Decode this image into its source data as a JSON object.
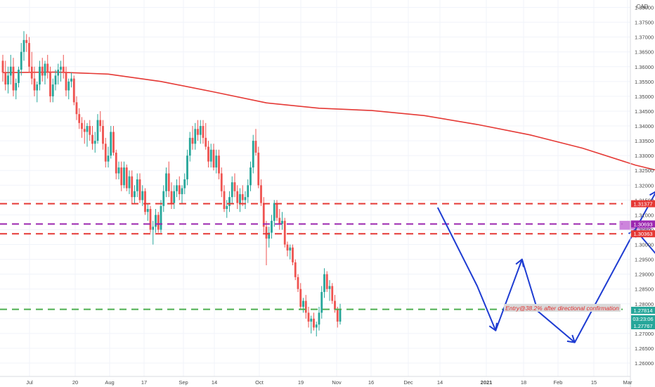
{
  "currency": "CAD",
  "annotation_text": "Entry@38.2% after directional confirmation",
  "countdown": "03:23:06",
  "colors": {
    "up": "#26a69a",
    "down": "#ef5350",
    "ma": "#e53935",
    "red_level": "#e53935",
    "purple_level": "#9c27b0",
    "green_level": "#4caf50",
    "projection": "#1e3cd2",
    "zone_fill": "#c46fd6",
    "annotation_bg": "#d9d9d9",
    "annotation_text": "#e03030"
  },
  "chart_data": {
    "type": "candlestick",
    "title": "",
    "xlabel": "",
    "ylabel": "",
    "ylim": [
      1.2555,
      1.3825
    ],
    "grid": true,
    "y_ticks": [
      "1.38000",
      "1.37500",
      "1.37000",
      "1.36500",
      "1.36000",
      "1.35500",
      "1.35000",
      "1.34500",
      "1.34000",
      "1.33500",
      "1.33000",
      "1.32500",
      "1.32000",
      "1.31500",
      "1.31000",
      "1.30500",
      "1.30000",
      "1.29500",
      "1.29000",
      "1.28500",
      "1.28000",
      "1.27500",
      "1.27000",
      "1.26500",
      "1.26000"
    ],
    "x_ticks": [
      "Jul",
      "20",
      "Aug",
      "17",
      "Sep",
      "14",
      "Oct",
      "19",
      "Nov",
      "16",
      "Dec",
      "14",
      "2021",
      "18",
      "Feb",
      "15",
      "Mar"
    ],
    "price_labels": [
      {
        "value": "1.31377",
        "color": "#e53935"
      },
      {
        "value": "1.30693",
        "color": "#9c27b0"
      },
      {
        "value": "1.30363",
        "color": "#e53935"
      },
      {
        "value": "1.27814",
        "color": "#26a69a"
      },
      {
        "value": "1.27767",
        "color": "#26a69a"
      }
    ],
    "levels": [
      {
        "value": 1.31377,
        "color": "#e53935",
        "style": "dashed"
      },
      {
        "value": 1.30693,
        "color": "#9c27b0",
        "style": "dashed"
      },
      {
        "value": 1.30363,
        "color": "#e53935",
        "style": "dashed"
      },
      {
        "value": 1.27814,
        "color": "#4caf50",
        "style": "dashed"
      }
    ],
    "moving_average": [
      [
        0,
        1.358
      ],
      [
        20,
        1.3582
      ],
      [
        40,
        1.3575
      ],
      [
        60,
        1.355
      ],
      [
        80,
        1.3515
      ],
      [
        100,
        1.3478
      ],
      [
        120,
        1.346
      ],
      [
        140,
        1.3452
      ],
      [
        160,
        1.3435
      ],
      [
        180,
        1.3405
      ],
      [
        200,
        1.337
      ],
      [
        220,
        1.3325
      ],
      [
        240,
        1.3268
      ],
      [
        260,
        1.3225
      ]
    ],
    "projection": [
      [
        165,
        1.3125
      ],
      [
        180,
        1.286
      ],
      [
        187,
        1.271
      ],
      [
        197,
        1.295
      ],
      [
        203,
        1.2775
      ],
      [
        217,
        1.267
      ],
      [
        240,
        1.305
      ],
      [
        248,
        1.318
      ]
    ],
    "arrow_secondary": [
      [
        240,
        1.305
      ],
      [
        251,
        1.2935
      ]
    ],
    "zone": {
      "x0": 234,
      "x1": 246,
      "top": 1.308,
      "bottom": 1.305
    },
    "candles": [
      [
        1.362,
        1.364,
        1.355,
        1.358
      ],
      [
        1.358,
        1.362,
        1.352,
        1.354
      ],
      [
        1.354,
        1.36,
        1.351,
        1.357
      ],
      [
        1.357,
        1.364,
        1.354,
        1.36
      ],
      [
        1.36,
        1.363,
        1.35,
        1.352
      ],
      [
        1.352,
        1.356,
        1.349,
        1.3545
      ],
      [
        1.3545,
        1.36,
        1.353,
        1.359
      ],
      [
        1.359,
        1.368,
        1.357,
        1.365
      ],
      [
        1.365,
        1.372,
        1.362,
        1.369
      ],
      [
        1.369,
        1.371,
        1.365,
        1.368
      ],
      [
        1.368,
        1.37,
        1.358,
        1.36
      ],
      [
        1.36,
        1.365,
        1.354,
        1.356
      ],
      [
        1.356,
        1.36,
        1.35,
        1.352
      ],
      [
        1.352,
        1.355,
        1.348,
        1.354
      ],
      [
        1.354,
        1.362,
        1.352,
        1.36
      ],
      [
        1.36,
        1.363,
        1.355,
        1.357
      ],
      [
        1.357,
        1.362,
        1.354,
        1.361
      ],
      [
        1.361,
        1.364,
        1.356,
        1.358
      ],
      [
        1.358,
        1.36,
        1.348,
        1.35
      ],
      [
        1.35,
        1.356,
        1.348,
        1.354
      ],
      [
        1.354,
        1.359,
        1.352,
        1.357
      ],
      [
        1.357,
        1.361,
        1.354,
        1.359
      ],
      [
        1.359,
        1.362,
        1.355,
        1.36
      ],
      [
        1.36,
        1.364,
        1.356,
        1.358
      ],
      [
        1.358,
        1.36,
        1.35,
        1.352
      ],
      [
        1.352,
        1.356,
        1.349,
        1.355
      ],
      [
        1.355,
        1.358,
        1.353,
        1.356
      ],
      [
        1.356,
        1.357,
        1.347,
        1.348
      ],
      [
        1.348,
        1.35,
        1.342,
        1.344
      ],
      [
        1.344,
        1.346,
        1.339,
        1.341
      ],
      [
        1.341,
        1.343,
        1.336,
        1.339
      ],
      [
        1.339,
        1.342,
        1.334,
        1.338
      ],
      [
        1.338,
        1.341,
        1.333,
        1.34
      ],
      [
        1.34,
        1.342,
        1.335,
        1.337
      ],
      [
        1.337,
        1.34,
        1.332,
        1.334
      ],
      [
        1.334,
        1.338,
        1.331,
        1.335
      ],
      [
        1.335,
        1.344,
        1.334,
        1.342
      ],
      [
        1.342,
        1.345,
        1.338,
        1.34
      ],
      [
        1.34,
        1.342,
        1.332,
        1.334
      ],
      [
        1.334,
        1.336,
        1.326,
        1.328
      ],
      [
        1.328,
        1.333,
        1.326,
        1.33
      ],
      [
        1.33,
        1.34,
        1.329,
        1.338
      ],
      [
        1.338,
        1.34,
        1.33,
        1.331
      ],
      [
        1.331,
        1.332,
        1.322,
        1.324
      ],
      [
        1.324,
        1.328,
        1.322,
        1.326
      ],
      [
        1.326,
        1.328,
        1.318,
        1.32
      ],
      [
        1.32,
        1.328,
        1.319,
        1.326
      ],
      [
        1.326,
        1.327,
        1.318,
        1.319
      ],
      [
        1.319,
        1.325,
        1.317,
        1.323
      ],
      [
        1.323,
        1.325,
        1.314,
        1.316
      ],
      [
        1.316,
        1.32,
        1.314,
        1.318
      ],
      [
        1.318,
        1.324,
        1.316,
        1.322
      ],
      [
        1.322,
        1.324,
        1.314,
        1.315
      ],
      [
        1.315,
        1.32,
        1.313,
        1.318
      ],
      [
        1.318,
        1.319,
        1.31,
        1.311
      ],
      [
        1.311,
        1.314,
        1.308,
        1.312
      ],
      [
        1.312,
        1.313,
        1.304,
        1.305
      ],
      [
        1.305,
        1.308,
        1.3,
        1.306
      ],
      [
        1.306,
        1.312,
        1.304,
        1.31
      ],
      [
        1.31,
        1.311,
        1.304,
        1.305
      ],
      [
        1.305,
        1.315,
        1.304,
        1.313
      ],
      [
        1.313,
        1.32,
        1.311,
        1.318
      ],
      [
        1.318,
        1.326,
        1.316,
        1.324
      ],
      [
        1.324,
        1.328,
        1.316,
        1.318
      ],
      [
        1.318,
        1.321,
        1.312,
        1.314
      ],
      [
        1.314,
        1.32,
        1.312,
        1.318
      ],
      [
        1.318,
        1.322,
        1.316,
        1.32
      ],
      [
        1.32,
        1.323,
        1.315,
        1.317
      ],
      [
        1.317,
        1.32,
        1.314,
        1.319
      ],
      [
        1.319,
        1.324,
        1.317,
        1.322
      ],
      [
        1.322,
        1.332,
        1.32,
        1.33
      ],
      [
        1.33,
        1.338,
        1.328,
        1.336
      ],
      [
        1.336,
        1.34,
        1.332,
        1.334
      ],
      [
        1.334,
        1.341,
        1.332,
        1.339
      ],
      [
        1.339,
        1.342,
        1.335,
        1.337
      ],
      [
        1.337,
        1.342,
        1.334,
        1.34
      ],
      [
        1.34,
        1.342,
        1.334,
        1.336
      ],
      [
        1.336,
        1.341,
        1.332,
        1.333
      ],
      [
        1.333,
        1.335,
        1.326,
        1.328
      ],
      [
        1.328,
        1.334,
        1.326,
        1.332
      ],
      [
        1.332,
        1.334,
        1.325,
        1.326
      ],
      [
        1.326,
        1.332,
        1.324,
        1.33
      ],
      [
        1.33,
        1.332,
        1.322,
        1.324
      ],
      [
        1.324,
        1.326,
        1.316,
        1.318
      ],
      [
        1.318,
        1.32,
        1.311,
        1.312
      ],
      [
        1.312,
        1.315,
        1.309,
        1.313
      ],
      [
        1.313,
        1.318,
        1.311,
        1.316
      ],
      [
        1.316,
        1.323,
        1.314,
        1.321
      ],
      [
        1.321,
        1.324,
        1.316,
        1.318
      ],
      [
        1.318,
        1.32,
        1.312,
        1.314
      ],
      [
        1.314,
        1.319,
        1.311,
        1.317
      ],
      [
        1.317,
        1.32,
        1.313,
        1.315
      ],
      [
        1.315,
        1.318,
        1.312,
        1.316
      ],
      [
        1.316,
        1.322,
        1.314,
        1.32
      ],
      [
        1.32,
        1.328,
        1.318,
        1.326
      ],
      [
        1.326,
        1.337,
        1.324,
        1.335
      ],
      [
        1.335,
        1.339,
        1.33,
        1.331
      ],
      [
        1.331,
        1.333,
        1.319,
        1.32
      ],
      [
        1.32,
        1.322,
        1.313,
        1.314
      ],
      [
        1.314,
        1.316,
        1.304,
        1.306
      ],
      [
        1.306,
        1.308,
        1.293,
        1.302
      ],
      [
        1.302,
        1.306,
        1.299,
        1.304
      ],
      [
        1.304,
        1.31,
        1.302,
        1.308
      ],
      [
        1.308,
        1.315,
        1.306,
        1.314
      ],
      [
        1.314,
        1.315,
        1.308,
        1.309
      ],
      [
        1.309,
        1.312,
        1.305,
        1.307
      ],
      [
        1.307,
        1.311,
        1.305,
        1.308
      ],
      [
        1.308,
        1.309,
        1.299,
        1.3
      ],
      [
        1.3,
        1.301,
        1.296,
        1.298
      ],
      [
        1.298,
        1.3,
        1.295,
        1.299
      ],
      [
        1.299,
        1.3,
        1.293,
        1.294
      ],
      [
        1.294,
        1.295,
        1.288,
        1.289
      ],
      [
        1.289,
        1.29,
        1.284,
        1.285
      ],
      [
        1.285,
        1.287,
        1.278,
        1.279
      ],
      [
        1.279,
        1.282,
        1.277,
        1.281
      ],
      [
        1.281,
        1.283,
        1.275,
        1.277
      ],
      [
        1.277,
        1.279,
        1.272,
        1.274
      ],
      [
        1.274,
        1.276,
        1.27,
        1.275
      ],
      [
        1.275,
        1.277,
        1.271,
        1.272
      ],
      [
        1.272,
        1.274,
        1.269,
        1.273
      ],
      [
        1.273,
        1.279,
        1.271,
        1.277
      ],
      [
        1.277,
        1.286,
        1.275,
        1.284
      ],
      [
        1.284,
        1.292,
        1.282,
        1.29
      ],
      [
        1.29,
        1.291,
        1.284,
        1.285
      ],
      [
        1.285,
        1.288,
        1.281,
        1.286
      ],
      [
        1.286,
        1.287,
        1.28,
        1.281
      ],
      [
        1.281,
        1.283,
        1.277,
        1.278
      ],
      [
        1.278,
        1.279,
        1.272,
        1.274
      ],
      [
        1.274,
        1.28,
        1.273,
        1.278
      ]
    ]
  }
}
